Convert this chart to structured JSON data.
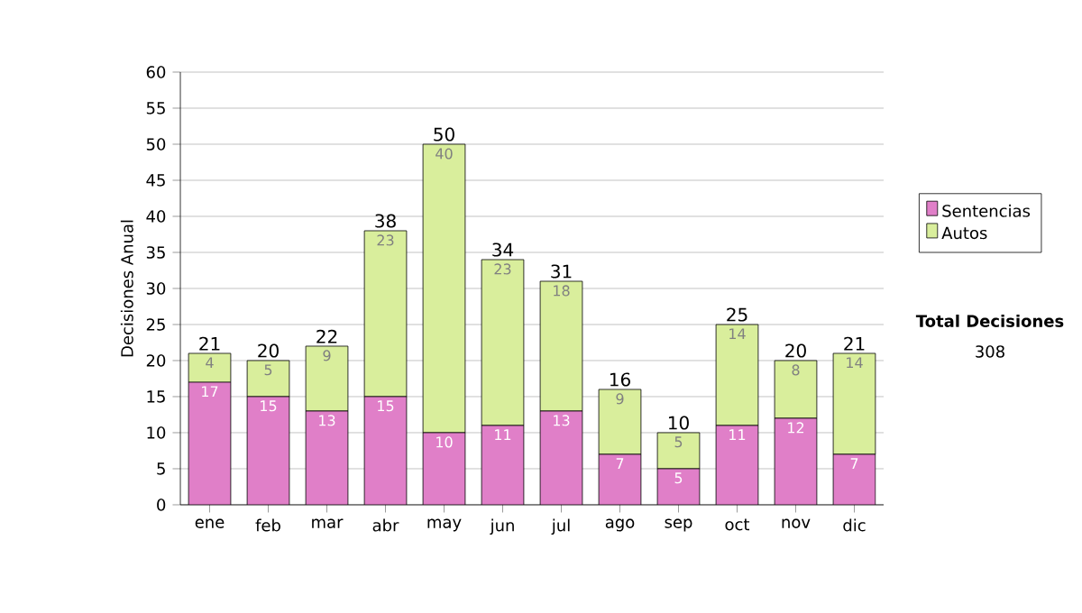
{
  "chart_data": {
    "type": "bar",
    "stacked": true,
    "ylabel": "Decisiones Anual",
    "categories": [
      "ene",
      "feb",
      "mar",
      "abr",
      "may",
      "jun",
      "jul",
      "ago",
      "sep",
      "oct",
      "nov",
      "dic"
    ],
    "series": [
      {
        "name": "Sentencias",
        "color": "#e07fc8",
        "values": [
          17,
          15,
          13,
          15,
          10,
          11,
          13,
          7,
          5,
          11,
          12,
          7
        ],
        "value_labels": [
          "17",
          "15",
          "13",
          "15",
          "10",
          "11",
          "13",
          "7",
          "5",
          "11",
          "12",
          "7"
        ]
      },
      {
        "name": "Autos",
        "color": "#d9ee9c",
        "values": [
          4,
          5,
          9,
          23,
          40,
          23,
          18,
          9,
          5,
          14,
          8,
          14
        ],
        "value_labels": [
          "4",
          "5",
          "9",
          "23",
          "40",
          "23",
          "18",
          "9",
          "5",
          "14",
          "8",
          "14"
        ]
      }
    ],
    "totals": [
      "21",
      "20",
      "22",
      "38",
      "50",
      "34",
      "31",
      "16",
      "10",
      "25",
      "20",
      "21"
    ],
    "ylim": [
      0,
      60
    ],
    "yticks": [
      0,
      5,
      10,
      15,
      20,
      25,
      30,
      35,
      40,
      45,
      50,
      55,
      60
    ],
    "grid": "y",
    "legend": "right",
    "annotations": [
      "Total Decisiones",
      "308"
    ]
  }
}
